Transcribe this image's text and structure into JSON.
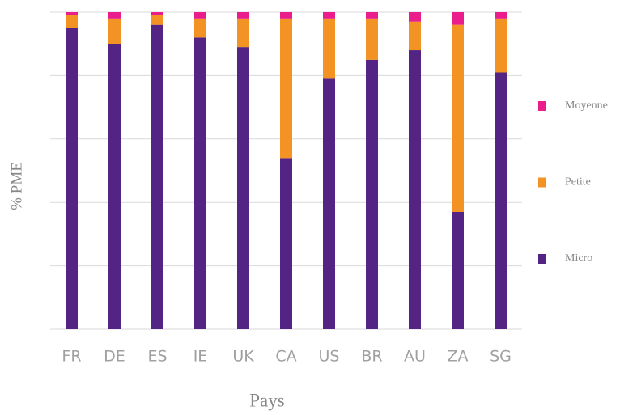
{
  "chart_data": {
    "type": "stacked_bar",
    "xlabel": "Pays",
    "ylabel": "% PME",
    "categories": [
      "FR",
      "DE",
      "ES",
      "IE",
      "UK",
      "CA",
      "US",
      "BR",
      "AU",
      "ZA",
      "SG"
    ],
    "series": [
      {
        "name": "Micro",
        "color": "#532483",
        "values": [
          95,
          90,
          96,
          92,
          89,
          54,
          79,
          85,
          88,
          37,
          81
        ]
      },
      {
        "name": "Petite",
        "color": "#f39323",
        "values": [
          4,
          8,
          3,
          6,
          9,
          44,
          19,
          13,
          9,
          59,
          17
        ]
      },
      {
        "name": "Moyenne",
        "color": "#e91e8c",
        "values": [
          1,
          2,
          1,
          2,
          2,
          2,
          2,
          2,
          3,
          4,
          2
        ]
      }
    ],
    "ylim": [
      0,
      100
    ],
    "yticks": [
      0,
      20,
      40,
      60,
      80,
      100
    ],
    "grid": true,
    "legend": "right"
  }
}
